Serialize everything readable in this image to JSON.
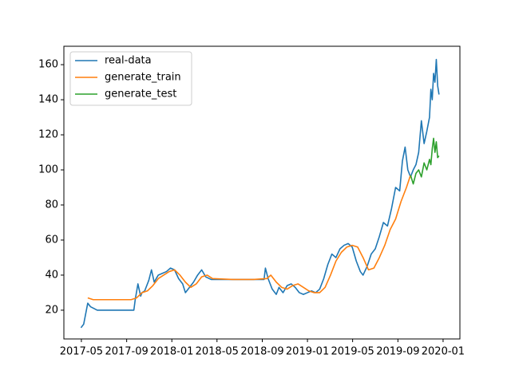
{
  "chart_data": {
    "type": "line",
    "xlim": [
      2017.204,
      2020.124
    ],
    "ylim": [
      3.6,
      170.5
    ],
    "xticks": [
      {
        "value": 2017.333,
        "label": "2017-05"
      },
      {
        "value": 2017.667,
        "label": "2017-09"
      },
      {
        "value": 2018.0,
        "label": "2018-01"
      },
      {
        "value": 2018.333,
        "label": "2018-05"
      },
      {
        "value": 2018.667,
        "label": "2018-09"
      },
      {
        "value": 2019.0,
        "label": "2019-01"
      },
      {
        "value": 2019.333,
        "label": "2019-05"
      },
      {
        "value": 2019.667,
        "label": "2019-09"
      },
      {
        "value": 2020.0,
        "label": "2020-01"
      }
    ],
    "yticks": [
      20,
      40,
      60,
      80,
      100,
      120,
      140,
      160
    ],
    "legend": "upper left",
    "series": [
      {
        "name": "real-data",
        "color": "#1f77b4",
        "x": [
          2017.33,
          2017.35,
          2017.37,
          2017.38,
          2017.4,
          2017.45,
          2017.55,
          2017.65,
          2017.72,
          2017.73,
          2017.75,
          2017.77,
          2017.78,
          2017.8,
          2017.83,
          2017.85,
          2017.87,
          2017.9,
          2017.93,
          2017.96,
          2017.99,
          2018.02,
          2018.05,
          2018.08,
          2018.1,
          2018.13,
          2018.16,
          2018.19,
          2018.22,
          2018.25,
          2018.29,
          2018.4,
          2018.5,
          2018.6,
          2018.68,
          2018.69,
          2018.71,
          2018.74,
          2018.77,
          2018.79,
          2018.82,
          2018.85,
          2018.88,
          2018.91,
          2018.94,
          2018.97,
          2019.0,
          2019.03,
          2019.06,
          2019.09,
          2019.12,
          2019.15,
          2019.18,
          2019.21,
          2019.24,
          2019.27,
          2019.3,
          2019.33,
          2019.36,
          2019.39,
          2019.41,
          2019.44,
          2019.47,
          2019.5,
          2019.53,
          2019.56,
          2019.59,
          2019.62,
          2019.65,
          2019.68,
          2019.7,
          2019.72,
          2019.74,
          2019.76,
          2019.78,
          2019.8,
          2019.82,
          2019.84,
          2019.86,
          2019.88,
          2019.9,
          2019.91,
          2019.92,
          2019.93,
          2019.94,
          2019.95,
          2019.96,
          2019.97
        ],
        "values": [
          10,
          12,
          20,
          24,
          22,
          20,
          20,
          20,
          20,
          26,
          35,
          28,
          30,
          31,
          37,
          43,
          36,
          40,
          41,
          42,
          44,
          43,
          38,
          35,
          30,
          33,
          36,
          40,
          43,
          39,
          37.5,
          37.5,
          37.5,
          37.5,
          37.5,
          44,
          38,
          32,
          29,
          33,
          30,
          34,
          35,
          33,
          30,
          29,
          30,
          31,
          30,
          32,
          38,
          46,
          52,
          50,
          55,
          57,
          58,
          56,
          48,
          42,
          40,
          45,
          52,
          55,
          62,
          70,
          68,
          78,
          90,
          88,
          105,
          113,
          100,
          96,
          100,
          103,
          110,
          128,
          115,
          122,
          130,
          146,
          140,
          155,
          150,
          163,
          148,
          143
        ]
      },
      {
        "name": "generate_train",
        "color": "#ff7f0e",
        "x": [
          2017.38,
          2017.42,
          2017.48,
          2017.55,
          2017.62,
          2017.7,
          2017.74,
          2017.78,
          2017.82,
          2017.86,
          2017.9,
          2017.94,
          2017.98,
          2018.02,
          2018.06,
          2018.1,
          2018.14,
          2018.18,
          2018.22,
          2018.26,
          2018.3,
          2018.45,
          2018.6,
          2018.7,
          2018.73,
          2018.77,
          2018.81,
          2018.85,
          2018.89,
          2018.93,
          2018.97,
          2019.01,
          2019.05,
          2019.09,
          2019.13,
          2019.17,
          2019.21,
          2019.25,
          2019.29,
          2019.33,
          2019.37,
          2019.41,
          2019.45,
          2019.49,
          2019.53,
          2019.57,
          2019.61,
          2019.65,
          2019.69,
          2019.73,
          2019.76
        ],
        "values": [
          27,
          26,
          26,
          26,
          26,
          26,
          27,
          30,
          31,
          34,
          38,
          40,
          42,
          43,
          40,
          36,
          33,
          35,
          39,
          40,
          38,
          37.5,
          37.5,
          38,
          40,
          36,
          33,
          32,
          34,
          35,
          33,
          31,
          30,
          30,
          33,
          40,
          48,
          53,
          56,
          57,
          56,
          50,
          43,
          44,
          50,
          57,
          66,
          72,
          82,
          90,
          97
        ]
      },
      {
        "name": "generate_test",
        "color": "#2ca02c",
        "x": [
          2019.76,
          2019.78,
          2019.8,
          2019.82,
          2019.84,
          2019.86,
          2019.88,
          2019.9,
          2019.91,
          2019.92,
          2019.93,
          2019.94,
          2019.95,
          2019.96,
          2019.97
        ],
        "values": [
          97,
          92,
          98,
          100,
          96,
          104,
          100,
          106,
          103,
          112,
          118,
          110,
          116,
          107,
          108
        ]
      }
    ]
  }
}
